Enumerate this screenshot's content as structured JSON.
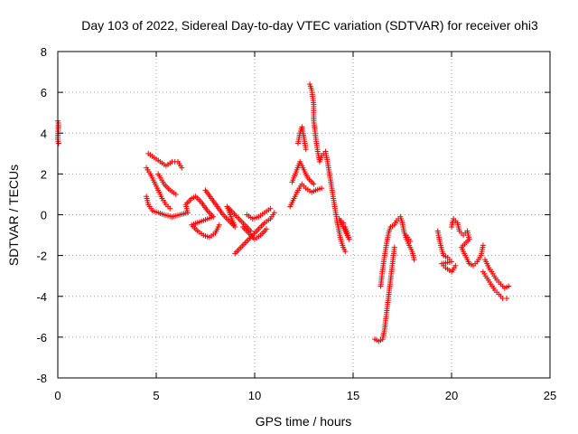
{
  "chart_data": {
    "type": "scatter",
    "title": "Day 103 of 2022, Sidereal Day-to-day VTEC variation (SDTVAR) for receiver ohi3",
    "xlabel": "GPS time / hours",
    "ylabel": "SDTVAR / TECUs",
    "xlim": [
      0,
      25
    ],
    "ylim": [
      -8,
      8
    ],
    "xticks": [
      0,
      5,
      10,
      15,
      20,
      25
    ],
    "yticks": [
      -8,
      -6,
      -4,
      -2,
      0,
      2,
      4,
      6,
      8
    ],
    "xtick_labels": [
      "0",
      "5",
      "10",
      "15",
      "20",
      "25"
    ],
    "ytick_labels": [
      "-8",
      "-6",
      "-4",
      "-2",
      "0",
      "2",
      "4",
      "6",
      "8"
    ],
    "grid": true,
    "marker": "+",
    "marker_color": "#ff0000",
    "series": [
      {
        "name": "SDTVAR",
        "points": [
          [
            0.0,
            4.6
          ],
          [
            0.03,
            4.5
          ],
          [
            0.0,
            3.7
          ],
          [
            0.04,
            3.5
          ],
          [
            4.5,
            2.3
          ],
          [
            4.7,
            2.0
          ],
          [
            4.9,
            1.6
          ],
          [
            5.1,
            1.2
          ],
          [
            5.3,
            0.8
          ],
          [
            5.5,
            0.5
          ],
          [
            5.7,
            0.3
          ],
          [
            4.6,
            3.0
          ],
          [
            4.9,
            2.8
          ],
          [
            5.2,
            2.6
          ],
          [
            5.5,
            2.4
          ],
          [
            5.8,
            2.6
          ],
          [
            6.1,
            2.6
          ],
          [
            6.3,
            2.3
          ],
          [
            5.1,
            2.0
          ],
          [
            5.4,
            1.5
          ],
          [
            5.7,
            1.2
          ],
          [
            6.0,
            1.0
          ],
          [
            4.5,
            0.9
          ],
          [
            4.6,
            0.5
          ],
          [
            4.8,
            0.2
          ],
          [
            5.1,
            0.1
          ],
          [
            5.4,
            0.0
          ],
          [
            5.8,
            -0.1
          ],
          [
            6.2,
            0.0
          ],
          [
            6.6,
            0.1
          ],
          [
            6.5,
            0.5
          ],
          [
            6.8,
            0.8
          ],
          [
            7.0,
            0.9
          ],
          [
            7.3,
            0.6
          ],
          [
            7.6,
            0.2
          ],
          [
            7.9,
            -0.1
          ],
          [
            6.8,
            -0.5
          ],
          [
            7.1,
            -0.8
          ],
          [
            7.4,
            -1.0
          ],
          [
            7.7,
            -1.1
          ],
          [
            8.0,
            -0.9
          ],
          [
            8.2,
            -0.5
          ],
          [
            7.5,
            1.2
          ],
          [
            7.8,
            0.8
          ],
          [
            8.1,
            0.4
          ],
          [
            8.4,
            0.0
          ],
          [
            8.7,
            -0.3
          ],
          [
            9.0,
            -0.6
          ],
          [
            8.6,
            0.4
          ],
          [
            8.9,
            0.1
          ],
          [
            9.2,
            -0.2
          ],
          [
            9.5,
            -0.5
          ],
          [
            9.8,
            -0.8
          ],
          [
            9.0,
            -1.9
          ],
          [
            9.3,
            -1.6
          ],
          [
            9.6,
            -1.3
          ],
          [
            9.9,
            -1.0
          ],
          [
            10.2,
            -0.7
          ],
          [
            10.5,
            -0.4
          ],
          [
            10.8,
            -0.2
          ],
          [
            11.0,
            0.1
          ],
          [
            9.6,
            0.0
          ],
          [
            9.9,
            -0.2
          ],
          [
            10.2,
            -0.1
          ],
          [
            10.5,
            0.1
          ],
          [
            10.8,
            0.3
          ],
          [
            9.4,
            -0.6
          ],
          [
            9.7,
            -0.9
          ],
          [
            10.0,
            -1.2
          ],
          [
            10.3,
            -1.0
          ],
          [
            10.6,
            -0.7
          ],
          [
            11.8,
            0.4
          ],
          [
            12.0,
            0.8
          ],
          [
            12.2,
            1.2
          ],
          [
            12.4,
            1.5
          ],
          [
            12.6,
            1.3
          ],
          [
            12.9,
            1.1
          ],
          [
            13.1,
            1.2
          ],
          [
            13.4,
            1.3
          ],
          [
            11.9,
            1.6
          ],
          [
            12.1,
            2.1
          ],
          [
            12.3,
            2.6
          ],
          [
            12.5,
            2.2
          ],
          [
            12.7,
            1.8
          ],
          [
            13.0,
            1.5
          ],
          [
            12.2,
            3.5
          ],
          [
            12.3,
            4.0
          ],
          [
            12.4,
            4.3
          ],
          [
            12.5,
            3.8
          ],
          [
            12.6,
            3.2
          ],
          [
            12.8,
            6.4
          ],
          [
            12.9,
            6.1
          ],
          [
            13.0,
            5.4
          ],
          [
            13.0,
            4.6
          ],
          [
            13.1,
            3.8
          ],
          [
            13.2,
            3.1
          ],
          [
            13.3,
            2.6
          ],
          [
            13.4,
            2.9
          ],
          [
            13.6,
            3.1
          ],
          [
            13.7,
            2.6
          ],
          [
            13.8,
            2.0
          ],
          [
            13.9,
            1.4
          ],
          [
            14.0,
            0.8
          ],
          [
            14.1,
            0.2
          ],
          [
            14.2,
            -0.4
          ],
          [
            14.3,
            -0.9
          ],
          [
            14.4,
            -1.3
          ],
          [
            14.5,
            -1.6
          ],
          [
            14.6,
            -1.8
          ],
          [
            14.6,
            -0.6
          ],
          [
            14.7,
            -0.9
          ],
          [
            14.8,
            -1.2
          ],
          [
            14.3,
            -0.2
          ],
          [
            14.5,
            -0.4
          ],
          [
            16.1,
            -6.1
          ],
          [
            16.3,
            -6.2
          ],
          [
            16.5,
            -6.1
          ],
          [
            16.6,
            -5.6
          ],
          [
            16.7,
            -4.8
          ],
          [
            16.8,
            -4.0
          ],
          [
            16.9,
            -3.2
          ],
          [
            17.0,
            -2.4
          ],
          [
            17.1,
            -1.6
          ],
          [
            16.4,
            -3.5
          ],
          [
            16.5,
            -2.7
          ],
          [
            16.6,
            -2.0
          ],
          [
            16.7,
            -1.4
          ],
          [
            16.8,
            -0.9
          ],
          [
            16.9,
            -0.6
          ],
          [
            17.1,
            -0.5
          ],
          [
            17.2,
            -0.3
          ],
          [
            17.4,
            -0.1
          ],
          [
            17.5,
            -0.4
          ],
          [
            17.6,
            -0.9
          ],
          [
            17.8,
            -1.4
          ],
          [
            18.0,
            -1.8
          ],
          [
            18.1,
            -2.2
          ],
          [
            17.7,
            -1.0
          ],
          [
            17.9,
            -1.3
          ],
          [
            19.3,
            -0.8
          ],
          [
            19.4,
            -1.3
          ],
          [
            19.5,
            -1.7
          ],
          [
            19.6,
            -2.0
          ],
          [
            19.8,
            -2.1
          ],
          [
            20.0,
            -2.3
          ],
          [
            19.5,
            -2.4
          ],
          [
            19.7,
            -2.6
          ],
          [
            20.0,
            -2.8
          ],
          [
            20.2,
            -2.5
          ],
          [
            20.0,
            -0.6
          ],
          [
            20.1,
            -0.2
          ],
          [
            20.3,
            -0.4
          ],
          [
            20.4,
            -0.8
          ],
          [
            20.6,
            -1.0
          ],
          [
            20.8,
            -0.8
          ],
          [
            20.9,
            -1.2
          ],
          [
            20.5,
            -1.6
          ],
          [
            20.7,
            -2.0
          ],
          [
            20.9,
            -2.4
          ],
          [
            21.1,
            -2.5
          ],
          [
            21.3,
            -2.3
          ],
          [
            21.5,
            -2.0
          ],
          [
            21.6,
            -1.5
          ],
          [
            21.6,
            -2.8
          ],
          [
            21.8,
            -3.1
          ],
          [
            22.0,
            -3.4
          ],
          [
            22.2,
            -3.7
          ],
          [
            22.4,
            -3.9
          ],
          [
            22.6,
            -4.1
          ],
          [
            22.8,
            -4.1
          ],
          [
            21.7,
            -2.2
          ],
          [
            21.9,
            -2.6
          ],
          [
            22.1,
            -2.9
          ],
          [
            22.3,
            -3.2
          ],
          [
            22.5,
            -3.4
          ],
          [
            22.7,
            -3.6
          ],
          [
            22.9,
            -3.5
          ]
        ]
      }
    ]
  }
}
